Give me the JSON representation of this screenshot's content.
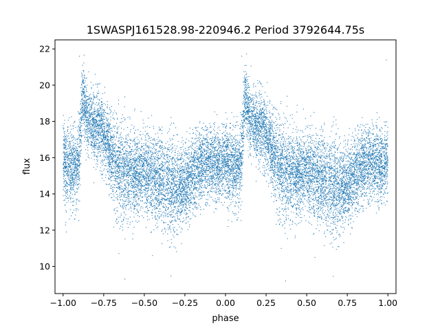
{
  "chart_data": {
    "type": "scatter",
    "title": "1SWASPJ161528.98-220946.2 Period 3792644.75s",
    "xlabel": "phase",
    "ylabel": "flux",
    "xlim": [
      -1.05,
      1.05
    ],
    "ylim": [
      8.5,
      22.5
    ],
    "xticks": [
      -1.0,
      -0.75,
      -0.5,
      -0.25,
      0.0,
      0.25,
      0.5,
      0.75,
      1.0
    ],
    "xtick_labels": [
      "−1.00",
      "−0.75",
      "−0.50",
      "−0.25",
      "0.00",
      "0.25",
      "0.50",
      "0.75",
      "1.00"
    ],
    "yticks": [
      10,
      12,
      14,
      16,
      18,
      20,
      22
    ],
    "ytick_labels": [
      "10",
      "12",
      "14",
      "16",
      "18",
      "20",
      "22"
    ],
    "grid": false,
    "point_color": "#1f77b4",
    "phase_profile": {
      "phase": [
        0.0,
        0.04,
        0.08,
        0.1,
        0.12,
        0.15,
        0.18,
        0.2,
        0.22,
        0.25,
        0.28,
        0.3,
        0.33,
        0.36,
        0.4,
        0.45,
        0.5,
        0.55,
        0.6,
        0.65,
        0.7,
        0.75,
        0.8,
        0.85,
        0.9,
        0.95,
        1.0
      ],
      "flux_center": [
        15.8,
        15.6,
        15.4,
        16.2,
        19.5,
        18.0,
        17.8,
        17.5,
        17.9,
        17.2,
        16.5,
        16.0,
        15.6,
        15.3,
        15.0,
        15.2,
        15.3,
        15.0,
        14.8,
        14.5,
        14.2,
        14.5,
        15.0,
        15.6,
        15.8,
        15.5,
        15.8
      ],
      "flux_spread": [
        1.2,
        1.4,
        1.3,
        1.6,
        1.0,
        1.2,
        1.1,
        1.3,
        1.2,
        1.3,
        1.4,
        1.6,
        1.6,
        1.7,
        1.6,
        1.4,
        1.3,
        1.4,
        1.5,
        1.6,
        1.5,
        1.4,
        1.3,
        1.3,
        1.2,
        1.2,
        1.2
      ]
    },
    "outliers": [
      {
        "x": -0.9,
        "y": 21.6
      },
      {
        "x": 0.1,
        "y": 21.6
      },
      {
        "x": -0.62,
        "y": 9.3
      },
      {
        "x": 0.37,
        "y": 9.2
      },
      {
        "x": -0.98,
        "y": 11.9
      },
      {
        "x": 0.99,
        "y": 21.4
      },
      {
        "x": -0.45,
        "y": 10.6
      },
      {
        "x": 0.55,
        "y": 10.5
      },
      {
        "x": 0.78,
        "y": 12.1
      },
      {
        "x": -0.22,
        "y": 12.3
      }
    ],
    "n_points": 14000
  }
}
